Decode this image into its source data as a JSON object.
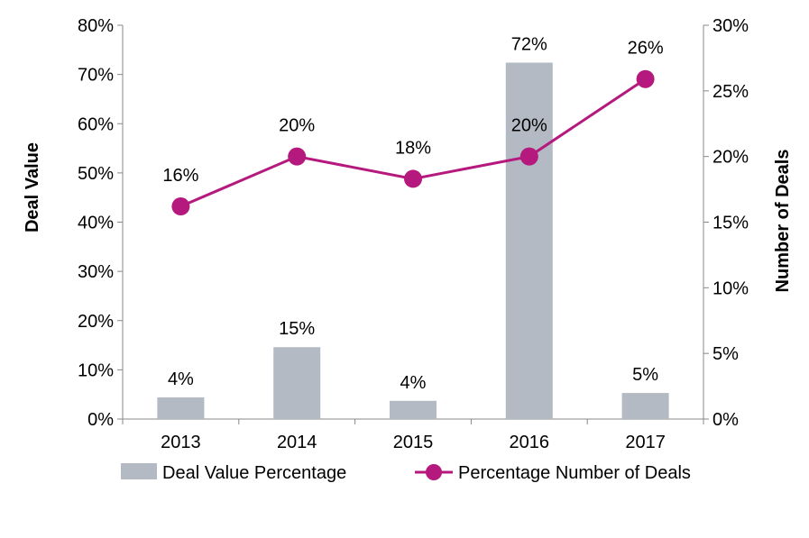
{
  "chart_data": {
    "type": "bar+line",
    "categories": [
      "2013",
      "2014",
      "2015",
      "2016",
      "2017"
    ],
    "series": [
      {
        "name": "Deal Value Percentage",
        "type": "bar",
        "axis": "left",
        "color": "#b4bac3",
        "values": [
          4.4,
          14.6,
          3.7,
          72.4,
          5.3
        ],
        "labels": [
          "4%",
          "15%",
          "4%",
          "72%",
          "5%"
        ]
      },
      {
        "name": "Percentage Number of Deals",
        "type": "line",
        "axis": "right",
        "color": "#b5197e",
        "values": [
          16.2,
          20.0,
          18.3,
          20.0,
          25.9
        ],
        "labels": [
          "16%",
          "20%",
          "18%",
          "20%",
          "26%"
        ]
      }
    ],
    "ylabel": "Deal Value",
    "y2label": "Number of Deals",
    "ylim": [
      0,
      80
    ],
    "y2lim": [
      0,
      30
    ],
    "yticks": [
      "0%",
      "10%",
      "20%",
      "30%",
      "40%",
      "50%",
      "60%",
      "70%",
      "80%"
    ],
    "y2ticks": [
      "0%",
      "5%",
      "10%",
      "15%",
      "20%",
      "25%",
      "30%"
    ],
    "grid": false,
    "legend": "bottom"
  }
}
